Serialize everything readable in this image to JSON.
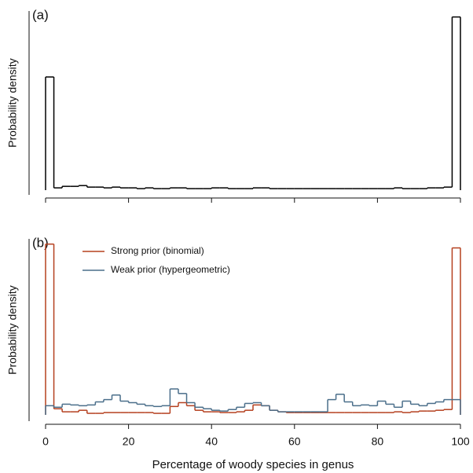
{
  "chart_data": [
    {
      "type": "histogram",
      "panel_label": "(a)",
      "ylabel": "Probability density",
      "bins": [
        0,
        2,
        4,
        6,
        8,
        10,
        12,
        14,
        16,
        18,
        20,
        22,
        24,
        26,
        28,
        30,
        32,
        34,
        36,
        38,
        40,
        42,
        44,
        46,
        48,
        50,
        52,
        54,
        56,
        58,
        60,
        62,
        64,
        66,
        68,
        70,
        72,
        74,
        76,
        78,
        80,
        82,
        84,
        86,
        88,
        90,
        92,
        94,
        96,
        98,
        100
      ],
      "series": [
        {
          "color": "#000000",
          "values": [
            0.149,
            0.003,
            0.005,
            0.005,
            0.006,
            0.004,
            0.004,
            0.003,
            0.004,
            0.003,
            0.003,
            0.002,
            0.003,
            0.002,
            0.002,
            0.003,
            0.003,
            0.002,
            0.002,
            0.002,
            0.003,
            0.003,
            0.002,
            0.002,
            0.002,
            0.003,
            0.003,
            0.002,
            0.002,
            0.002,
            0.002,
            0.002,
            0.002,
            0.002,
            0.002,
            0.002,
            0.002,
            0.002,
            0.002,
            0.002,
            0.002,
            0.002,
            0.003,
            0.002,
            0.002,
            0.002,
            0.003,
            0.003,
            0.004,
            0.228
          ]
        }
      ],
      "xlim": [
        0,
        100
      ],
      "ylim": [
        0,
        0.24
      ]
    },
    {
      "type": "histogram",
      "panel_label": "(b)",
      "ylabel": "Probability density",
      "xlabel": "Percentage of woody species in genus",
      "bins": [
        0,
        2,
        4,
        6,
        8,
        10,
        12,
        14,
        16,
        18,
        20,
        22,
        24,
        26,
        28,
        30,
        32,
        34,
        36,
        38,
        40,
        42,
        44,
        46,
        48,
        50,
        52,
        54,
        56,
        58,
        60,
        62,
        64,
        66,
        68,
        70,
        72,
        74,
        76,
        78,
        80,
        82,
        84,
        86,
        88,
        90,
        92,
        94,
        96,
        98,
        100
      ],
      "series": [
        {
          "name": "Strong prior (binomial)",
          "color": "#b5401f",
          "values": [
            0.224,
            0.008,
            0.004,
            0.004,
            0.006,
            0.002,
            0.002,
            0.003,
            0.003,
            0.003,
            0.003,
            0.003,
            0.003,
            0.002,
            0.002,
            0.011,
            0.016,
            0.012,
            0.006,
            0.004,
            0.004,
            0.003,
            0.003,
            0.004,
            0.006,
            0.013,
            0.012,
            0.006,
            0.004,
            0.003,
            0.003,
            0.003,
            0.003,
            0.003,
            0.003,
            0.003,
            0.003,
            0.003,
            0.003,
            0.003,
            0.003,
            0.003,
            0.004,
            0.003,
            0.004,
            0.005,
            0.005,
            0.006,
            0.007,
            0.219
          ]
        },
        {
          "name": "Weak prior (hypergeometric)",
          "color": "#4a6e8a",
          "values": [
            0.012,
            0.01,
            0.014,
            0.013,
            0.012,
            0.013,
            0.017,
            0.02,
            0.026,
            0.018,
            0.016,
            0.014,
            0.012,
            0.011,
            0.012,
            0.034,
            0.028,
            0.016,
            0.01,
            0.008,
            0.006,
            0.005,
            0.007,
            0.01,
            0.015,
            0.016,
            0.012,
            0.006,
            0.004,
            0.004,
            0.004,
            0.004,
            0.004,
            0.004,
            0.02,
            0.027,
            0.017,
            0.012,
            0.013,
            0.012,
            0.018,
            0.014,
            0.01,
            0.018,
            0.014,
            0.012,
            0.015,
            0.017,
            0.02,
            0.02
          ]
        }
      ],
      "xlim": [
        0,
        100
      ],
      "ylim": [
        0,
        0.235
      ],
      "xticks": [
        0,
        20,
        40,
        60,
        80,
        100
      ],
      "legend": "upper left"
    }
  ]
}
